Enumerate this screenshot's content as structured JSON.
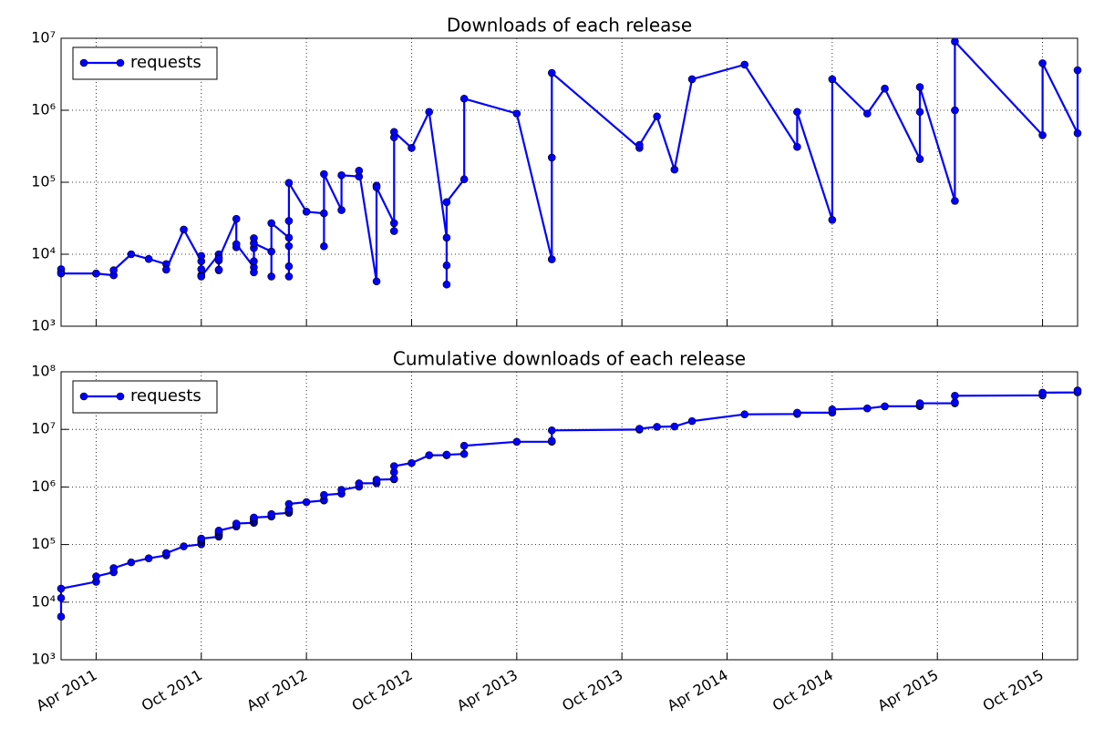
{
  "chart_data": [
    {
      "type": "line",
      "title": "Downloads of each release",
      "log_y": true,
      "grid": true,
      "legend": "upper left",
      "x": [
        "2011-02",
        "2011-02",
        "2011-02",
        "2011-04",
        "2011-04",
        "2011-05",
        "2011-05",
        "2011-06",
        "2011-07",
        "2011-08",
        "2011-08",
        "2011-09",
        "2011-10",
        "2011-10",
        "2011-10",
        "2011-10",
        "2011-10",
        "2011-11",
        "2011-11",
        "2011-11",
        "2011-11",
        "2011-11",
        "2011-11",
        "2011-12",
        "2011-12",
        "2011-12",
        "2012-01",
        "2012-01",
        "2012-01",
        "2012-01",
        "2012-01",
        "2012-01",
        "2012-02",
        "2012-02",
        "2012-02",
        "2012-03",
        "2012-03",
        "2012-03",
        "2012-03",
        "2012-03",
        "2012-03",
        "2012-04",
        "2012-05",
        "2012-05",
        "2012-05",
        "2012-06",
        "2012-06",
        "2012-07",
        "2012-07",
        "2012-08",
        "2012-08",
        "2012-08",
        "2012-09",
        "2012-09",
        "2012-09",
        "2012-09",
        "2012-10",
        "2012-11",
        "2012-12",
        "2012-12",
        "2012-12",
        "2012-12",
        "2013-01",
        "2013-01",
        "2013-04",
        "2013-06",
        "2013-06",
        "2013-06",
        "2013-11",
        "2013-11",
        "2013-12",
        "2014-01",
        "2014-02",
        "2014-05",
        "2014-08",
        "2014-08",
        "2014-10",
        "2014-10",
        "2014-12",
        "2015-01",
        "2015-03",
        "2015-03",
        "2015-03",
        "2015-05",
        "2015-05",
        "2015-05",
        "2015-10",
        "2015-10",
        "2015-12",
        "2015-12"
      ],
      "xlim": [
        "2011-02",
        "2015-12"
      ],
      "ylim": [
        1000,
        10000000
      ],
      "yticks": [
        {
          "value": 1000,
          "label": "10³"
        },
        {
          "value": 10000,
          "label": "10⁴"
        },
        {
          "value": 100000,
          "label": "10⁵"
        },
        {
          "value": 1000000,
          "label": "10⁶"
        },
        {
          "value": 10000000,
          "label": "10⁷"
        }
      ],
      "series": [
        {
          "name": "requests",
          "color": "#0000ff",
          "values": [
            5600,
            6200,
            5400,
            5400,
            5400,
            5100,
            6000,
            10000,
            8600,
            7300,
            6100,
            22000,
            8000,
            9500,
            5100,
            6200,
            4900,
            10000,
            8200,
            6000,
            9000,
            6100,
            8700,
            31000,
            12500,
            13800,
            6600,
            8000,
            5600,
            16700,
            12200,
            14200,
            10900,
            4900,
            27000,
            17000,
            13000,
            4900,
            29000,
            6800,
            98000,
            39000,
            37000,
            12900,
            130000,
            41000,
            125000,
            120000,
            145000,
            4200,
            90000,
            85000,
            27000,
            21000,
            420000,
            500000,
            300000,
            950000,
            17000,
            3800,
            7000,
            53000,
            110000,
            1450000,
            900000,
            8500,
            220000,
            3300000,
            300000,
            330000,
            820000,
            150000,
            2700000,
            4300000,
            310000,
            950000,
            30000,
            2700000,
            900000,
            2000000,
            210000,
            950000,
            2100000,
            55000,
            1000000,
            9000000,
            450000,
            4500000,
            480000,
            3600000
          ]
        }
      ]
    },
    {
      "type": "line",
      "title": "Cumulative downloads of each release",
      "log_y": true,
      "grid": true,
      "legend": "upper left",
      "x": [
        "2011-02",
        "2011-02",
        "2011-02",
        "2011-04",
        "2011-04",
        "2011-05",
        "2011-05",
        "2011-06",
        "2011-07",
        "2011-08",
        "2011-08",
        "2011-09",
        "2011-10",
        "2011-10",
        "2011-10",
        "2011-10",
        "2011-10",
        "2011-11",
        "2011-11",
        "2011-11",
        "2011-11",
        "2011-11",
        "2011-11",
        "2011-12",
        "2011-12",
        "2011-12",
        "2012-01",
        "2012-01",
        "2012-01",
        "2012-01",
        "2012-01",
        "2012-01",
        "2012-02",
        "2012-02",
        "2012-02",
        "2012-03",
        "2012-03",
        "2012-03",
        "2012-03",
        "2012-03",
        "2012-03",
        "2012-04",
        "2012-05",
        "2012-05",
        "2012-05",
        "2012-06",
        "2012-06",
        "2012-07",
        "2012-07",
        "2012-08",
        "2012-08",
        "2012-08",
        "2012-09",
        "2012-09",
        "2012-09",
        "2012-09",
        "2012-10",
        "2012-11",
        "2012-12",
        "2012-12",
        "2012-12",
        "2012-12",
        "2013-01",
        "2013-01",
        "2013-04",
        "2013-06",
        "2013-06",
        "2013-06",
        "2013-11",
        "2013-11",
        "2013-12",
        "2014-01",
        "2014-02",
        "2014-05",
        "2014-08",
        "2014-08",
        "2014-10",
        "2014-10",
        "2014-12",
        "2015-01",
        "2015-03",
        "2015-03",
        "2015-03",
        "2015-05",
        "2015-05",
        "2015-05",
        "2015-10",
        "2015-10",
        "2015-12",
        "2015-12"
      ],
      "xlim": [
        "2011-02",
        "2015-12"
      ],
      "xticks": [
        {
          "value": "2011-04",
          "label": "Apr 2011"
        },
        {
          "value": "2011-10",
          "label": "Oct 2011"
        },
        {
          "value": "2012-04",
          "label": "Apr 2012"
        },
        {
          "value": "2012-10",
          "label": "Oct 2012"
        },
        {
          "value": "2013-04",
          "label": "Apr 2013"
        },
        {
          "value": "2013-10",
          "label": "Oct 2013"
        },
        {
          "value": "2014-04",
          "label": "Apr 2014"
        },
        {
          "value": "2014-10",
          "label": "Oct 2014"
        },
        {
          "value": "2015-04",
          "label": "Apr 2015"
        },
        {
          "value": "2015-10",
          "label": "Oct 2015"
        }
      ],
      "ylim": [
        1000,
        100000000
      ],
      "yticks": [
        {
          "value": 1000,
          "label": "10³"
        },
        {
          "value": 10000,
          "label": "10⁴"
        },
        {
          "value": 100000,
          "label": "10⁵"
        },
        {
          "value": 1000000,
          "label": "10⁶"
        },
        {
          "value": 10000000,
          "label": "10⁷"
        },
        {
          "value": 100000000,
          "label": "10⁸"
        }
      ],
      "series": [
        {
          "name": "requests",
          "color": "#0000ff",
          "values": [
            5600,
            11800,
            17200,
            22600,
            28000,
            33100,
            39100,
            49100,
            57700,
            65000,
            71100,
            93100,
            101100,
            110600,
            115700,
            121900,
            126800,
            136800,
            145000,
            151000,
            160000,
            166100,
            174800,
            205800,
            218300,
            232100,
            238700,
            246700,
            252300,
            269000,
            281200,
            295400,
            306300,
            311200,
            338200,
            355200,
            368200,
            373100,
            402100,
            408900,
            506900,
            545900,
            582900,
            595800,
            725800,
            766800,
            891800,
            1011800,
            1156800,
            1161000,
            1251000,
            1336000,
            1363000,
            1384000,
            1804000,
            2304000,
            2604000,
            3554000,
            3571000,
            3574800,
            3581800,
            3634800,
            3744800,
            5194800,
            6094800,
            6103300,
            6323300,
            9623300,
            9923300,
            10253300,
            11073300,
            11223300,
            13923300,
            18223300,
            18533300,
            19483300,
            19513300,
            22213300,
            23113300,
            25113300,
            25323300,
            26273300,
            28373300,
            28428300,
            29428300,
            38428300,
            38878300,
            43378300,
            43858300,
            47458300
          ]
        }
      ]
    }
  ]
}
